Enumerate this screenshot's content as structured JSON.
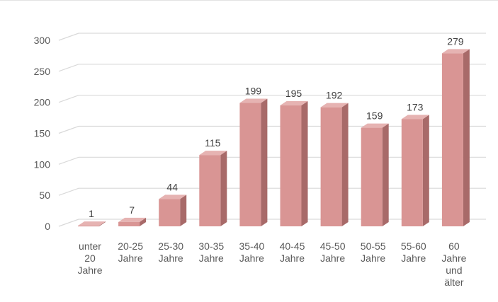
{
  "chart_data": {
    "type": "bar",
    "style": "3d-column",
    "categories": [
      [
        "unter",
        "20",
        "Jahre"
      ],
      [
        "20-25",
        "Jahre"
      ],
      [
        "25-30",
        "Jahre"
      ],
      [
        "30-35",
        "Jahre"
      ],
      [
        "35-40",
        "Jahre"
      ],
      [
        "40-45",
        "Jahre"
      ],
      [
        "45-50",
        "Jahre"
      ],
      [
        "50-55",
        "Jahre"
      ],
      [
        "55-60",
        "Jahre"
      ],
      [
        "60",
        "Jahre",
        "und",
        "älter"
      ]
    ],
    "values": [
      1,
      7,
      44,
      115,
      199,
      195,
      192,
      159,
      173,
      279
    ],
    "yticks": [
      "0",
      "50",
      "100",
      "150",
      "200",
      "250",
      "300"
    ],
    "ylim": [
      0,
      300
    ],
    "grid": true,
    "legend": "none",
    "title": "",
    "xlabel": "",
    "ylabel": "",
    "colors": {
      "bar_front": "#d99594",
      "bar_top": "#e6b3b2",
      "bar_side": "#a86a69",
      "gridline": "#d9d9d9"
    }
  }
}
